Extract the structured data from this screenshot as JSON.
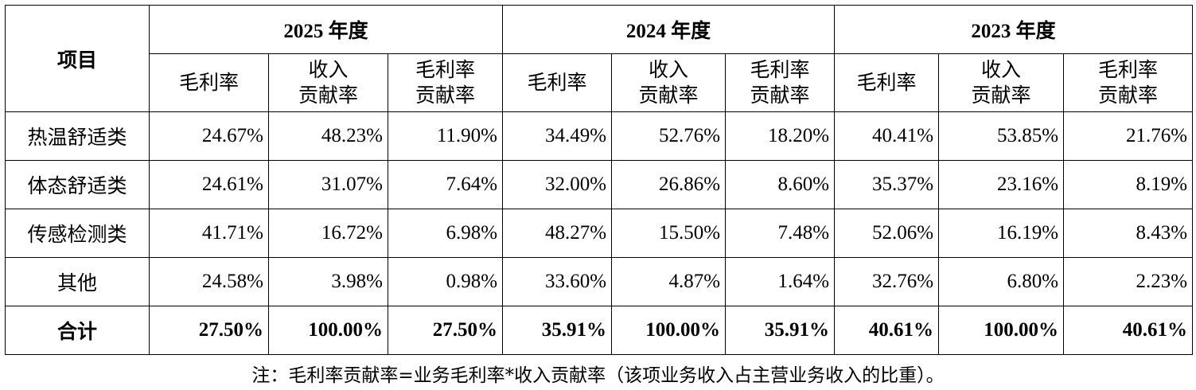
{
  "header": {
    "item_label": "项目",
    "years": [
      "2025 年度",
      "2024 年度",
      "2023 年度"
    ],
    "sub_columns": [
      [
        "毛利率"
      ],
      [
        "收入",
        "贡献率"
      ],
      [
        "毛利率",
        "贡献率"
      ]
    ]
  },
  "rows": [
    {
      "label": "热温舒适类",
      "values": [
        "24.67%",
        "48.23%",
        "11.90%",
        "34.49%",
        "52.76%",
        "18.20%",
        "40.41%",
        "53.85%",
        "21.76%"
      ]
    },
    {
      "label": "体态舒适类",
      "values": [
        "24.61%",
        "31.07%",
        "7.64%",
        "32.00%",
        "26.86%",
        "8.60%",
        "35.37%",
        "23.16%",
        "8.19%"
      ]
    },
    {
      "label": "传感检测类",
      "values": [
        "41.71%",
        "16.72%",
        "6.98%",
        "48.27%",
        "15.50%",
        "7.48%",
        "52.06%",
        "16.19%",
        "8.43%"
      ]
    },
    {
      "label": "其他",
      "values": [
        "24.58%",
        "3.98%",
        "0.98%",
        "33.60%",
        "4.87%",
        "1.64%",
        "32.76%",
        "6.80%",
        "2.23%"
      ]
    }
  ],
  "total": {
    "label": "合计",
    "values": [
      "27.50%",
      "100.00%",
      "27.50%",
      "35.91%",
      "100.00%",
      "35.91%",
      "40.61%",
      "100.00%",
      "40.61%"
    ]
  },
  "note": "注：毛利率贡献率=业务毛利率*收入贡献率（该项业务收入占主营业务收入的比重）。"
}
